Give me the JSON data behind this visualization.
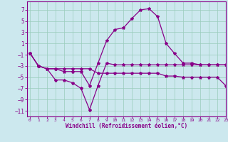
{
  "background_color": "#cce8ee",
  "grid_color": "#99ccbb",
  "line_color": "#880088",
  "xlabel": "Windchill (Refroidissement éolien,°C)",
  "ylim": [
    -12,
    8.5
  ],
  "xlim": [
    -0.3,
    23
  ],
  "yticks": [
    7,
    5,
    3,
    1,
    -1,
    -3,
    -5,
    -7,
    -9,
    -11
  ],
  "xticks": [
    0,
    1,
    2,
    3,
    4,
    5,
    6,
    7,
    8,
    9,
    10,
    11,
    12,
    13,
    14,
    15,
    16,
    17,
    18,
    19,
    20,
    21,
    22,
    23
  ],
  "line1_x": [
    0,
    1,
    2,
    3,
    4,
    5,
    6,
    7,
    8,
    9,
    10,
    11,
    12,
    13,
    14,
    15,
    16,
    17,
    18,
    19,
    20,
    21,
    22,
    23
  ],
  "line1_y": [
    -0.7,
    -3.0,
    -3.5,
    -5.5,
    -5.5,
    -6.0,
    -7.0,
    -10.8,
    -6.5,
    -2.5,
    -2.8,
    -2.8,
    -2.8,
    -2.8,
    -2.8,
    -2.8,
    -2.8,
    -2.8,
    -2.8,
    -2.8,
    -2.8,
    -2.8,
    -2.8,
    -2.8
  ],
  "line2_x": [
    0,
    1,
    2,
    3,
    4,
    5,
    6,
    7,
    8,
    9,
    10,
    11,
    12,
    13,
    14,
    15,
    16,
    17,
    18,
    19,
    20,
    21,
    22,
    23
  ],
  "line2_y": [
    -0.7,
    -3.0,
    -3.5,
    -3.5,
    -3.5,
    -3.5,
    -3.5,
    -3.5,
    -4.3,
    -4.3,
    -4.3,
    -4.3,
    -4.3,
    -4.3,
    -4.3,
    -4.3,
    -4.8,
    -4.8,
    -5.0,
    -5.0,
    -5.0,
    -5.0,
    -5.0,
    -6.5
  ],
  "line3_x": [
    0,
    1,
    2,
    3,
    4,
    5,
    6,
    7,
    8,
    9,
    10,
    11,
    12,
    13,
    14,
    15,
    16,
    17,
    18,
    19,
    20,
    21,
    22,
    23
  ],
  "line3_y": [
    -0.7,
    -3.0,
    -3.5,
    -3.5,
    -4.0,
    -4.0,
    -4.0,
    -6.5,
    -2.5,
    1.5,
    3.5,
    3.8,
    5.5,
    7.0,
    7.2,
    5.8,
    1.0,
    -0.8,
    -2.5,
    -2.5,
    -2.8,
    -2.8,
    -2.8,
    -2.8
  ]
}
